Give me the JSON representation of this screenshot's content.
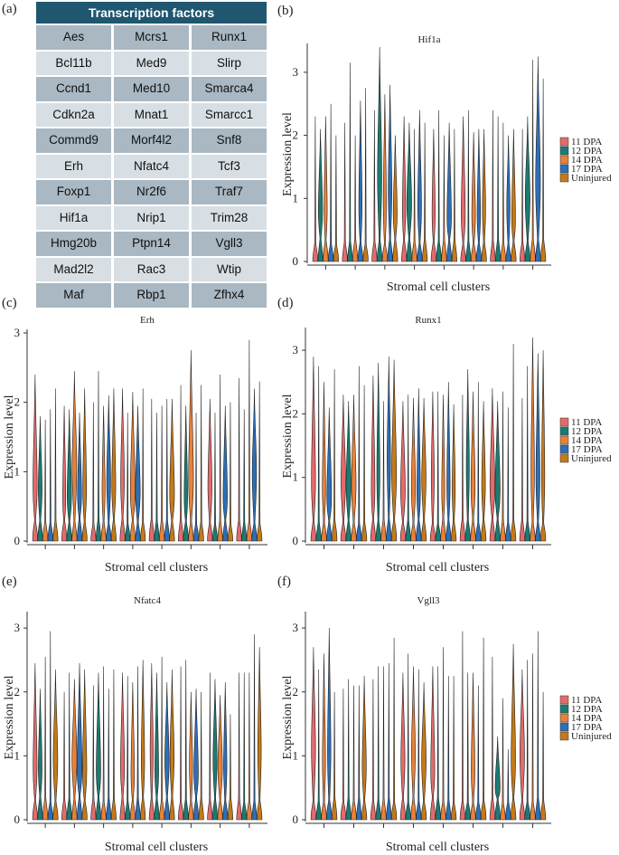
{
  "panel_labels": [
    "(a)",
    "(b)",
    "(c)",
    "(d)",
    "(e)",
    "(f)"
  ],
  "table": {
    "header": "Transcription factors",
    "rows": [
      [
        "Aes",
        "Mcrs1",
        "Runx1"
      ],
      [
        "Bcl11b",
        "Med9",
        "Slirp"
      ],
      [
        "Ccnd1",
        "Med10",
        "Smarca4"
      ],
      [
        "Cdkn2a",
        "Mnat1",
        "Smarcc1"
      ],
      [
        "Commd9",
        "Morf4l2",
        "Snf8"
      ],
      [
        "Erh",
        "Nfatc4",
        "Tcf3"
      ],
      [
        "Foxp1",
        "Nr2f6",
        "Traf7"
      ],
      [
        "Hif1a",
        "Nrip1",
        "Trim28"
      ],
      [
        "Hmg20b",
        "Ptpn14",
        "Vgll3"
      ],
      [
        "Mad2l2",
        "Rac3",
        "Wtip"
      ],
      [
        "Maf",
        "Rbp1",
        "Zfhx4"
      ]
    ]
  },
  "legend": {
    "entries": [
      "11 DPA",
      "12 DPA",
      "14 DPA",
      "17 DPA",
      "Uninjured"
    ],
    "colors": [
      "#e46b6b",
      "#1d7a72",
      "#e8823a",
      "#2e6fb5",
      "#c47a1a"
    ]
  },
  "chart_data": [
    {
      "type": "violin",
      "title": "Hif1a",
      "xlabel": "Stromal cell clusters",
      "ylabel": "Expression level",
      "yticks": [
        "0",
        "1",
        "2",
        "3"
      ],
      "ylim": [
        0,
        3.4
      ],
      "clusters": 8,
      "max_values": [
        [
          2.3,
          2.1,
          2.3,
          2.5,
          2.0
        ],
        [
          2.2,
          3.15,
          2.0,
          2.55,
          2.75
        ],
        [
          2.4,
          3.4,
          2.65,
          2.8,
          2.0
        ],
        [
          2.3,
          2.2,
          2.1,
          2.4,
          2.2
        ],
        [
          2.1,
          2.4,
          2.0,
          2.2,
          2.1
        ],
        [
          2.3,
          2.4,
          2.05,
          2.1,
          2.1
        ],
        [
          2.4,
          2.3,
          2.2,
          2.0,
          2.1
        ],
        [
          2.1,
          2.3,
          3.2,
          3.25,
          2.9
        ]
      ]
    },
    {
      "type": "violin",
      "title": "Erh",
      "xlabel": "Stromal cell clusters",
      "ylabel": "Expression level",
      "yticks": [
        "0",
        "1",
        "2",
        "3"
      ],
      "ylim": [
        0,
        3.0
      ],
      "clusters": 8,
      "max_values": [
        [
          2.4,
          1.8,
          1.75,
          1.9,
          2.2
        ],
        [
          1.95,
          1.9,
          2.45,
          1.85,
          2.2
        ],
        [
          2.0,
          2.45,
          1.95,
          2.1,
          2.2
        ],
        [
          2.2,
          1.85,
          2.15,
          1.95,
          2.2
        ],
        [
          2.05,
          1.85,
          1.95,
          2.05,
          2.05
        ],
        [
          2.25,
          1.95,
          2.75,
          1.85,
          2.25
        ],
        [
          2.05,
          1.85,
          2.4,
          1.95,
          2.0
        ],
        [
          2.35,
          1.9,
          2.9,
          2.2,
          2.3
        ]
      ]
    },
    {
      "type": "violin",
      "title": "Runx1",
      "xlabel": "Stromal cell clusters",
      "ylabel": "Expression level",
      "yticks": [
        "0",
        "1",
        "2",
        "3"
      ],
      "ylim": [
        0,
        3.3
      ],
      "clusters": 8,
      "max_values": [
        [
          2.9,
          2.75,
          2.5,
          2.1,
          2.7
        ],
        [
          2.3,
          2.2,
          2.3,
          2.75,
          2.45
        ],
        [
          2.6,
          2.8,
          2.2,
          2.9,
          2.85
        ],
        [
          2.2,
          2.3,
          2.25,
          2.4,
          2.25
        ],
        [
          2.35,
          2.35,
          2.3,
          2.5,
          2.15
        ],
        [
          2.3,
          2.7,
          2.35,
          2.5,
          2.2
        ],
        [
          2.4,
          2.2,
          2.35,
          2.1,
          3.1
        ],
        [
          2.25,
          2.75,
          3.2,
          2.95,
          3.0
        ]
      ]
    },
    {
      "type": "violin",
      "title": "Nfatc4",
      "xlabel": "Stromal cell clusters",
      "ylabel": "Expression level",
      "yticks": [
        "0",
        "1",
        "2",
        "3"
      ],
      "ylim": [
        0,
        3.2
      ],
      "clusters": 8,
      "max_values": [
        [
          2.45,
          2.05,
          2.55,
          2.95,
          2.35
        ],
        [
          2.0,
          2.3,
          2.2,
          2.45,
          2.35
        ],
        [
          2.1,
          2.3,
          2.4,
          2.05,
          2.35
        ],
        [
          2.3,
          2.25,
          2.15,
          2.4,
          2.5
        ],
        [
          2.45,
          2.3,
          2.55,
          2.15,
          2.35
        ],
        [
          2.4,
          2.5,
          2.0,
          2.05,
          2.0
        ],
        [
          2.3,
          2.2,
          1.95,
          2.15,
          1.65
        ],
        [
          2.3,
          2.3,
          2.3,
          2.9,
          2.7
        ]
      ]
    },
    {
      "type": "violin",
      "title": "Vgll3",
      "xlabel": "Stromal cell clusters",
      "ylabel": "Expression level",
      "yticks": [
        "0",
        "1",
        "2",
        "3"
      ],
      "ylim": [
        0,
        3.2
      ],
      "clusters": 8,
      "max_values": [
        [
          2.7,
          2.35,
          2.6,
          3.0,
          2.0
        ],
        [
          2.05,
          2.2,
          2.1,
          2.1,
          2.25
        ],
        [
          2.2,
          2.4,
          2.4,
          2.45,
          2.85
        ],
        [
          2.3,
          2.6,
          2.4,
          2.35,
          2.15
        ],
        [
          2.4,
          2.4,
          2.7,
          2.25,
          2.25
        ],
        [
          2.95,
          2.3,
          2.3,
          2.1,
          2.85
        ],
        [
          2.55,
          1.3,
          1.9,
          1.1,
          2.75
        ],
        [
          2.35,
          2.5,
          2.6,
          2.95,
          2.0
        ]
      ]
    }
  ]
}
